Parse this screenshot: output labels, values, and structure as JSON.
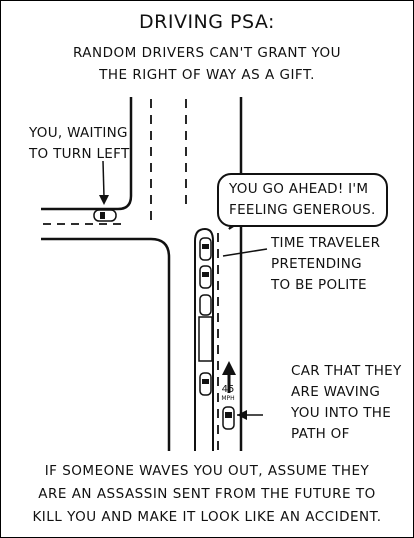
{
  "panel": {
    "title": "Driving PSA:",
    "subtitle_lines": [
      "Random drivers can't grant you",
      "the right of way as a gift."
    ],
    "you_label_lines": [
      "You, waiting",
      "to turn left"
    ],
    "speech_bubble_lines": [
      "You go ahead! I'm",
      "feeling generous."
    ],
    "time_traveler_lines": [
      "Time traveler",
      "pretending",
      "to be polite"
    ],
    "car_label_lines": [
      "Car that they",
      "are waving",
      "you into the",
      "path of"
    ],
    "speed_sign": {
      "number": "45",
      "unit": "mph"
    },
    "bottom_lines": [
      "If someone waves you out, assume they",
      "are an assassin sent from the future to",
      "kill you and make it look like an accident."
    ]
  }
}
